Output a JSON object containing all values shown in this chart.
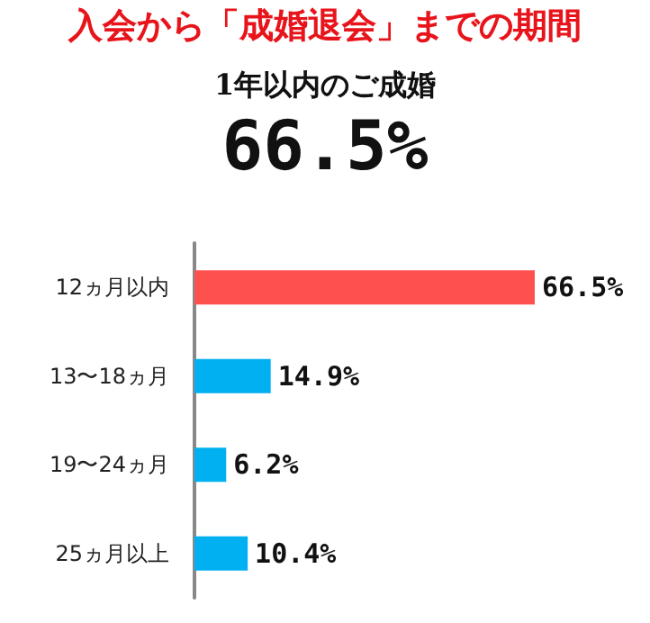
{
  "chart_data": {
    "type": "bar",
    "orientation": "horizontal",
    "title": "入会から「成婚退会」までの期間",
    "subtitle": "1年以内のご成婚",
    "annotations": [
      "66.5%"
    ],
    "categories": [
      "12ヵ月以内",
      "13〜18ヵ月",
      "19〜24ヵ月",
      "25ヵ月以上"
    ],
    "values": [
      66.5,
      14.9,
      6.2,
      10.4
    ],
    "colors": [
      "#ff5050",
      "#00b0f0",
      "#00b0f0",
      "#00b0f0"
    ],
    "value_labels": [
      "66.5%",
      "14.9%",
      "6.2%",
      "10.4%"
    ]
  }
}
